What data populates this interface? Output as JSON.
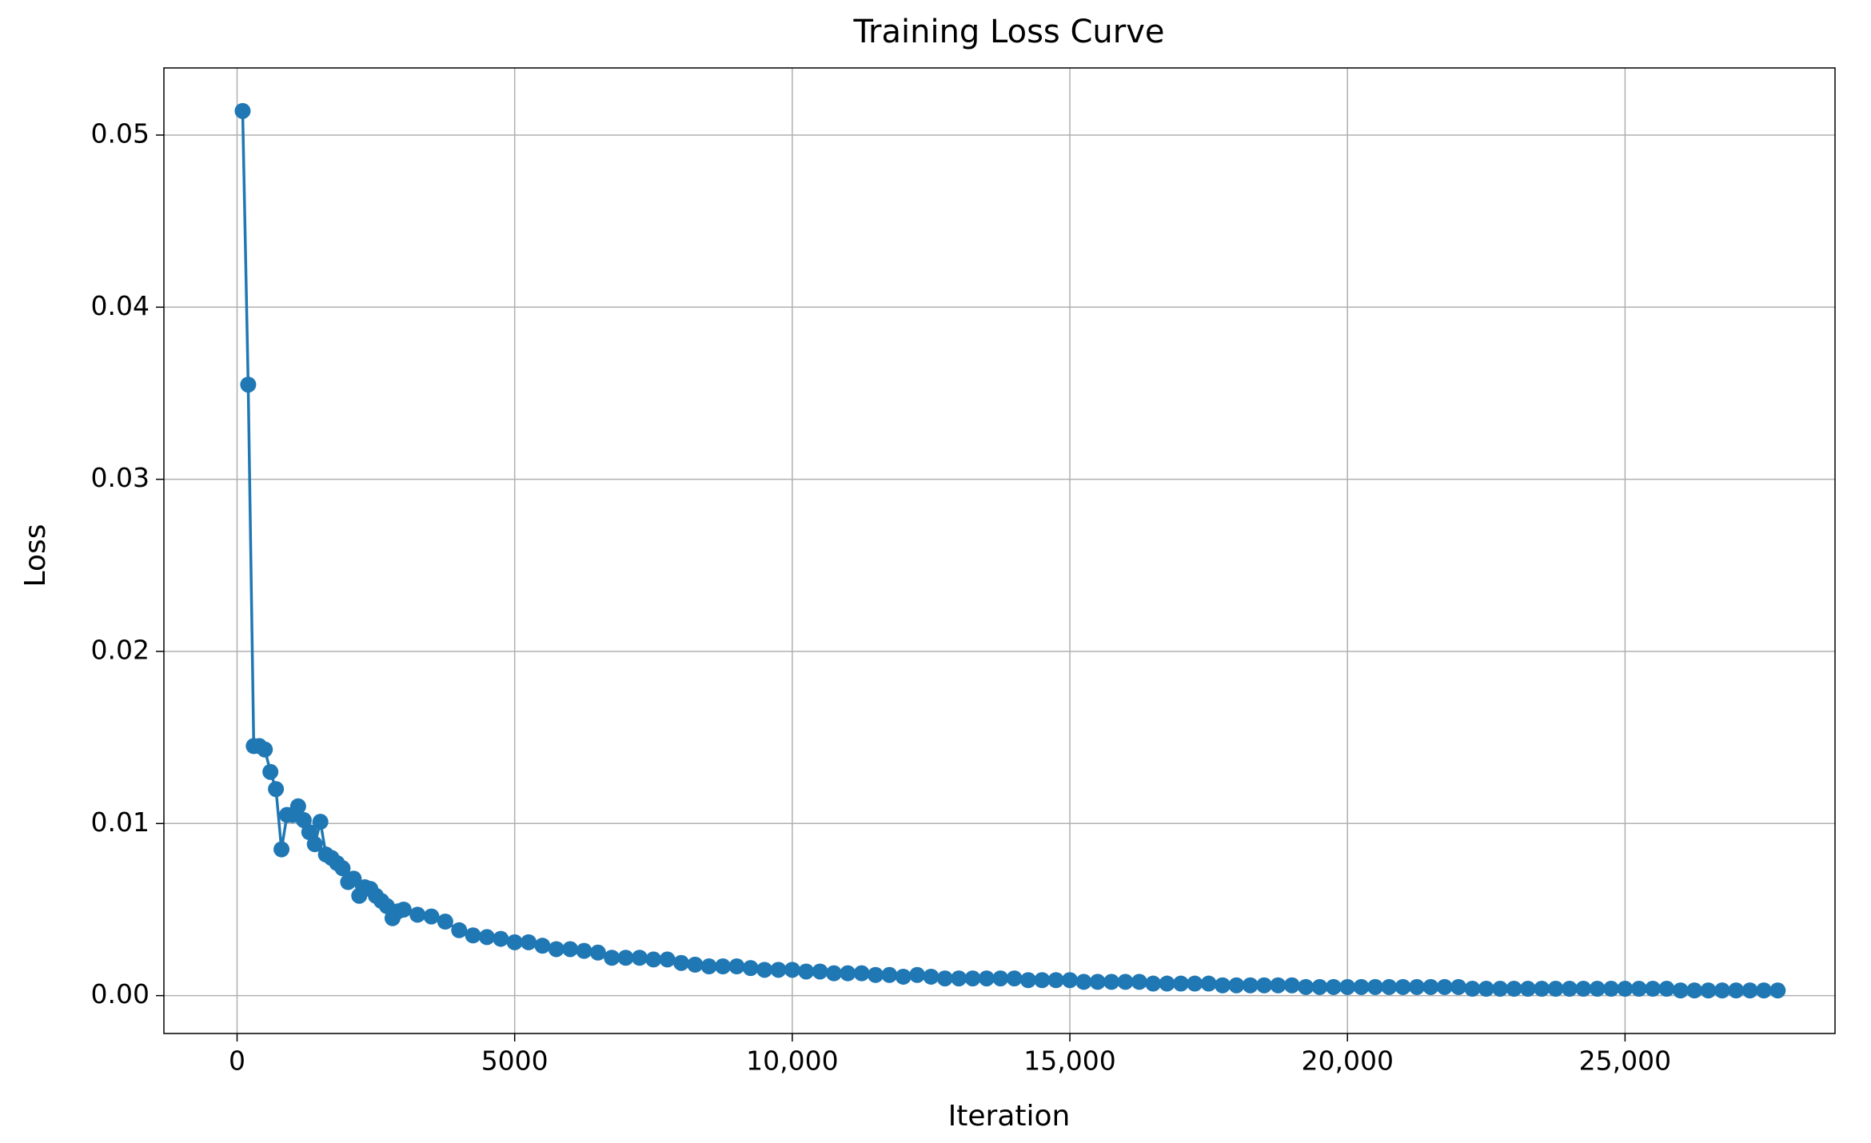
{
  "chart_data": {
    "type": "line",
    "title": "Training Loss Curve",
    "x_label": "Iteration",
    "y_label": "Loss",
    "color": "#1f77b4",
    "grid": true,
    "xlim": [
      -1318,
      28782
    ],
    "ylim": [
      -0.0022,
      0.0539
    ],
    "xticks": [
      0,
      5000,
      {
        "value": 10000,
        "label": "10,000"
      },
      {
        "value": 15000,
        "label": "15,000"
      },
      {
        "value": 20000,
        "label": "20,000"
      },
      {
        "value": 25000,
        "label": "25,000"
      }
    ],
    "yticks": [
      {
        "value": 0,
        "label": "0.00"
      },
      {
        "value": 0.01,
        "label": "0.01"
      },
      {
        "value": 0.02,
        "label": "0.02"
      },
      {
        "value": 0.03,
        "label": "0.03"
      },
      {
        "value": 0.04,
        "label": "0.04"
      },
      {
        "value": 0.05,
        "label": "0.05"
      }
    ],
    "x": [
      100,
      200,
      300,
      400,
      500,
      600,
      700,
      800,
      900,
      1000,
      1100,
      1200,
      1300,
      1400,
      1500,
      1600,
      1700,
      1800,
      1900,
      2000,
      2100,
      2200,
      2300,
      2400,
      2500,
      2600,
      2700,
      2800,
      2900,
      3000,
      3250,
      3500,
      3750,
      4000,
      4250,
      4500,
      4750,
      5000,
      5250,
      5500,
      5750,
      6000,
      6250,
      6500,
      6750,
      7000,
      7250,
      7500,
      7750,
      8000,
      8250,
      8500,
      8750,
      9000,
      9250,
      9500,
      9750,
      10000,
      10250,
      10500,
      10750,
      11000,
      11250,
      11500,
      11750,
      12000,
      12250,
      12500,
      12750,
      13000,
      13250,
      13500,
      13750,
      14000,
      14250,
      14500,
      14750,
      15000,
      15250,
      15500,
      15750,
      16000,
      16250,
      16500,
      16750,
      17000,
      17250,
      17500,
      17750,
      18000,
      18250,
      18500,
      18750,
      19000,
      19250,
      19500,
      19750,
      20000,
      20250,
      20500,
      20750,
      21000,
      21250,
      21500,
      21750,
      22000,
      22250,
      22500,
      22750,
      23000,
      23250,
      23500,
      23750,
      24000,
      24250,
      24500,
      24750,
      25000,
      25250,
      25500,
      25750,
      26000,
      26250,
      26500,
      26750,
      27000,
      27250,
      27500,
      27750
    ],
    "values": [
      0.0514,
      0.0355,
      0.0145,
      0.0145,
      0.0143,
      0.013,
      0.012,
      0.0085,
      0.0105,
      0.0105,
      0.011,
      0.0102,
      0.0095,
      0.0088,
      0.0101,
      0.0082,
      0.008,
      0.0077,
      0.0074,
      0.0066,
      0.0068,
      0.0058,
      0.0063,
      0.0062,
      0.0058,
      0.0055,
      0.0052,
      0.0045,
      0.0049,
      0.005,
      0.0047,
      0.0046,
      0.0043,
      0.0038,
      0.0035,
      0.0034,
      0.0033,
      0.0031,
      0.0031,
      0.0029,
      0.0027,
      0.0027,
      0.0026,
      0.0025,
      0.0022,
      0.0022,
      0.0022,
      0.0021,
      0.0021,
      0.0019,
      0.0018,
      0.0017,
      0.0017,
      0.0017,
      0.0016,
      0.0015,
      0.0015,
      0.0015,
      0.0014,
      0.0014,
      0.0013,
      0.0013,
      0.0013,
      0.0012,
      0.0012,
      0.0011,
      0.0012,
      0.0011,
      0.001,
      0.001,
      0.001,
      0.001,
      0.001,
      0.001,
      0.0009,
      0.0009,
      0.0009,
      0.0009,
      0.0008,
      0.0008,
      0.0008,
      0.0008,
      0.0008,
      0.0007,
      0.0007,
      0.0007,
      0.0007,
      0.0007,
      0.0006,
      0.0006,
      0.0006,
      0.0006,
      0.0006,
      0.0006,
      0.0005,
      0.0005,
      0.0005,
      0.0005,
      0.0005,
      0.0005,
      0.0005,
      0.0005,
      0.0005,
      0.0005,
      0.0005,
      0.0005,
      0.0004,
      0.0004,
      0.0004,
      0.0004,
      0.0004,
      0.0004,
      0.0004,
      0.0004,
      0.0004,
      0.0004,
      0.0004,
      0.0004,
      0.0004,
      0.0004,
      0.0004,
      0.0003,
      0.0003,
      0.0003,
      0.0003,
      0.0003,
      0.0003,
      0.0003,
      0.0003
    ]
  }
}
